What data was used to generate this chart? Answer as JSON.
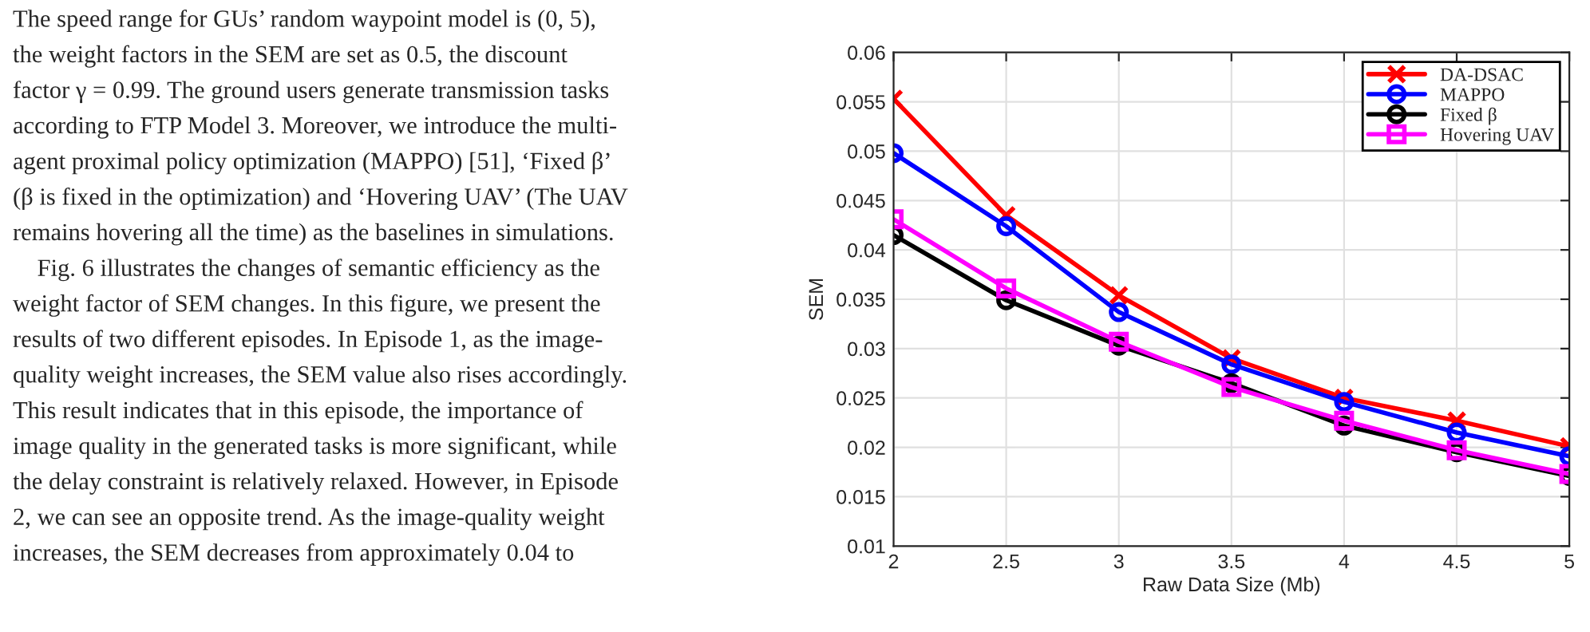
{
  "chart_data": {
    "type": "line",
    "xlabel": "Raw Data Size (Mb)",
    "ylabel": "SEM",
    "x": [
      2,
      2.5,
      3,
      3.5,
      4,
      4.5,
      5
    ],
    "series": [
      {
        "name": "DA-DSAC",
        "color": "#ff0000",
        "marker": "cross",
        "values": [
          0.0553,
          0.0435,
          0.0354,
          0.029,
          0.025,
          0.0227,
          0.0201
        ]
      },
      {
        "name": "MAPPO",
        "color": "#0000ff",
        "marker": "circle",
        "values": [
          0.0498,
          0.0424,
          0.0337,
          0.0284,
          0.0246,
          0.0215,
          0.0191
        ]
      },
      {
        "name": "Fixed β",
        "color": "#000000",
        "marker": "circle",
        "values": [
          0.0415,
          0.0349,
          0.0303,
          0.0265,
          0.0222,
          0.0195,
          0.0171
        ]
      },
      {
        "name": "Hovering UAV",
        "color": "#ff00ff",
        "marker": "square",
        "values": [
          0.0431,
          0.0361,
          0.0307,
          0.0261,
          0.0227,
          0.0197,
          0.0173
        ]
      }
    ],
    "xlim": [
      2,
      5
    ],
    "xticks": [
      2,
      2.5,
      3,
      3.5,
      4,
      4.5,
      5
    ],
    "ylim": [
      0.01,
      0.06
    ],
    "yticks": [
      0.01,
      0.015,
      0.02,
      0.025,
      0.03,
      0.035,
      0.04,
      0.045,
      0.05,
      0.055,
      0.06
    ],
    "grid": true,
    "legend": "top right",
    "line_style": "solid",
    "annotations": [
      "The speed range for GUs’ random waypoint model is (0, 5),",
      "the weight factors in the SEM are set as 0.5, the discount",
      "factor γ = 0.99. The ground users generate transmission tasks",
      "according to FTP Model 3. Moreover, we introduce the multi-",
      "agent proximal policy optimization (MAPPO) [51], ‘Fixed β’",
      "(β is fixed in the optimization) and ‘Hovering UAV’ (The UAV",
      "remains hovering all the time) as the baselines in simulations.",
      "    Fig. 6 illustrates the changes of semantic efficiency as the",
      "weight factor of SEM changes. In this figure, we present the",
      "results of two different episodes. In Episode 1, as the image-",
      "quality weight increases, the SEM value also rises accordingly.",
      "This result indicates that in this episode, the importance of",
      "image quality in the generated tasks is more significant, while",
      "the delay constraint is relatively relaxed. However, in Episode",
      "2, we can see an opposite trend. As the image-quality weight",
      "increases, the SEM decreases from approximately 0.04 to"
    ]
  }
}
